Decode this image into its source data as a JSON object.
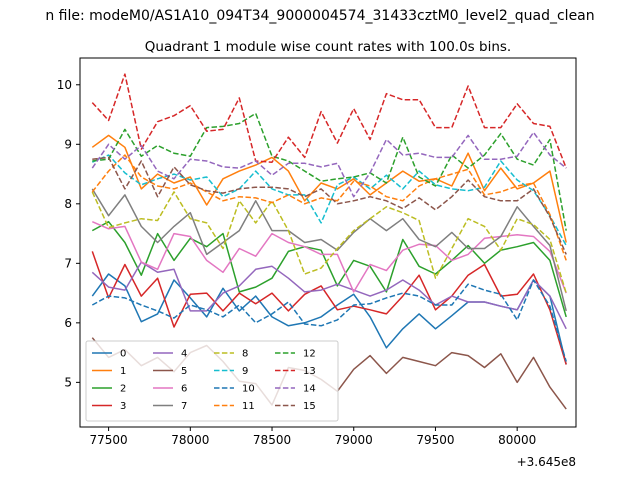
{
  "chart_data": {
    "type": "line",
    "suptitle": "n file: modeM0/AS1A10_094T34_9000004574_31433cztM0_level2_quad_clean",
    "title": "Quadrant 1 module wise count rates with 100.0s bins.",
    "xlabel": "",
    "ylabel": "",
    "offset_text": "+3.645e8",
    "xlim": [
      77325,
      80360
    ],
    "ylim": [
      4.25,
      10.45
    ],
    "x_ticks": [
      77500,
      78000,
      78500,
      79000,
      79500,
      80000
    ],
    "x_tick_labels": [
      "77500",
      "78000",
      "78500",
      "79000",
      "79500",
      "80000"
    ],
    "y_ticks": [
      5,
      6,
      7,
      8,
      9,
      10
    ],
    "y_tick_labels": [
      "5",
      "6",
      "7",
      "8",
      "9",
      "10"
    ],
    "x": [
      77400,
      77500,
      77600,
      77700,
      77800,
      77900,
      78000,
      78100,
      78200,
      78300,
      78400,
      78500,
      78600,
      78700,
      78800,
      78900,
      79000,
      79100,
      79200,
      79300,
      79400,
      79500,
      79600,
      79700,
      79800,
      79900,
      80000,
      80100,
      80200,
      80300
    ],
    "legend_position": "lower-left",
    "series": [
      {
        "name": "0",
        "color": "#1f77b4",
        "dash": "solid",
        "values": [
          6.45,
          6.82,
          6.62,
          6.02,
          6.15,
          6.72,
          6.42,
          6.1,
          6.58,
          6.2,
          6.45,
          6.1,
          5.95,
          6.0,
          6.1,
          6.3,
          6.48,
          6.1,
          5.58,
          5.9,
          6.15,
          5.9,
          6.12,
          6.35,
          6.35,
          6.28,
          6.22,
          6.72,
          6.45,
          5.3
        ]
      },
      {
        "name": "1",
        "color": "#ff7f0e",
        "dash": "solid",
        "values": [
          8.95,
          9.15,
          8.95,
          8.25,
          8.5,
          8.35,
          8.45,
          7.98,
          8.42,
          8.55,
          8.65,
          8.78,
          8.55,
          8.05,
          8.35,
          8.25,
          8.42,
          8.15,
          8.35,
          8.55,
          8.38,
          8.42,
          8.3,
          8.85,
          8.22,
          8.6,
          8.25,
          8.35,
          8.55,
          7.35
        ]
      },
      {
        "name": "2",
        "color": "#2ca02c",
        "dash": "solid",
        "values": [
          7.55,
          7.7,
          7.35,
          6.8,
          7.5,
          7.05,
          7.42,
          7.28,
          7.5,
          6.52,
          6.6,
          6.75,
          7.2,
          7.28,
          7.22,
          6.62,
          7.05,
          6.95,
          6.52,
          7.4,
          6.95,
          6.82,
          7.05,
          7.3,
          7.0,
          7.22,
          7.28,
          7.35,
          7.05,
          6.1
        ]
      },
      {
        "name": "3",
        "color": "#d62728",
        "dash": "solid",
        "values": [
          7.2,
          6.42,
          6.98,
          6.45,
          6.75,
          5.93,
          6.48,
          6.5,
          6.2,
          6.5,
          6.32,
          6.5,
          6.2,
          6.48,
          6.62,
          6.22,
          6.28,
          6.22,
          6.15,
          6.45,
          6.8,
          6.22,
          6.45,
          6.8,
          6.98,
          6.45,
          6.48,
          6.82,
          6.22,
          5.3
        ]
      },
      {
        "name": "4",
        "color": "#9467bd",
        "dash": "solid",
        "values": [
          6.85,
          6.6,
          6.55,
          7.02,
          6.85,
          6.9,
          6.2,
          6.2,
          6.5,
          6.62,
          6.9,
          6.95,
          6.75,
          6.52,
          6.55,
          6.65,
          6.55,
          6.45,
          6.55,
          6.72,
          6.55,
          6.3,
          6.45,
          6.35,
          6.35,
          6.28,
          6.22,
          6.72,
          6.45,
          5.9
        ]
      },
      {
        "name": "5",
        "color": "#8c564b",
        "dash": "solid",
        "values": [
          5.75,
          5.42,
          5.55,
          5.28,
          5.42,
          5.18,
          5.5,
          5.62,
          5.35,
          5.02,
          4.98,
          4.62,
          5.25,
          5.2,
          5.05,
          4.85,
          5.22,
          5.45,
          5.15,
          5.42,
          5.35,
          5.28,
          5.5,
          5.45,
          5.25,
          5.48,
          5.0,
          5.42,
          4.92,
          4.55
        ]
      },
      {
        "name": "6",
        "color": "#e377c2",
        "dash": "solid",
        "values": [
          7.7,
          7.58,
          7.62,
          7.02,
          6.9,
          7.5,
          7.45,
          7.05,
          6.85,
          7.25,
          7.12,
          7.5,
          7.35,
          7.28,
          7.15,
          7.15,
          6.52,
          6.98,
          6.88,
          7.22,
          7.32,
          7.3,
          7.05,
          7.15,
          7.42,
          7.45,
          7.48,
          7.45,
          7.2,
          6.5
        ]
      },
      {
        "name": "7",
        "color": "#7f7f7f",
        "dash": "solid",
        "values": [
          8.25,
          7.8,
          8.15,
          7.62,
          7.35,
          7.62,
          7.85,
          7.15,
          7.35,
          7.55,
          8.05,
          7.55,
          7.55,
          7.35,
          7.4,
          7.22,
          7.52,
          7.75,
          7.55,
          7.75,
          7.4,
          7.28,
          7.52,
          7.25,
          7.25,
          7.45,
          7.95,
          7.62,
          7.3,
          6.2
        ]
      },
      {
        "name": "8",
        "color": "#bcbd22",
        "dash": "dashed",
        "values": [
          8.2,
          7.6,
          7.68,
          7.75,
          7.72,
          8.2,
          7.75,
          7.68,
          7.25,
          8.05,
          7.68,
          8.05,
          7.55,
          6.82,
          6.92,
          7.25,
          7.55,
          7.75,
          7.95,
          7.85,
          7.72,
          6.75,
          7.25,
          7.75,
          7.62,
          7.22,
          7.75,
          7.65,
          7.4,
          6.5
        ]
      },
      {
        "name": "9",
        "color": "#17becf",
        "dash": "dashed",
        "values": [
          8.7,
          8.82,
          8.52,
          8.32,
          8.42,
          8.5,
          8.4,
          8.45,
          8.12,
          8.25,
          8.55,
          8.25,
          8.15,
          8.15,
          7.68,
          8.32,
          8.45,
          8.25,
          8.48,
          8.25,
          8.55,
          8.32,
          8.25,
          8.22,
          8.28,
          8.72,
          8.4,
          8.22,
          7.8,
          7.3
        ]
      },
      {
        "name": "10",
        "color": "#1f77b4",
        "dash": "dashed",
        "values": [
          6.3,
          6.45,
          6.42,
          6.3,
          6.2,
          6.08,
          6.3,
          6.22,
          6.1,
          6.3,
          6.0,
          6.15,
          6.35,
          5.98,
          5.95,
          6.05,
          6.3,
          6.32,
          6.42,
          6.5,
          6.45,
          6.3,
          6.3,
          6.65,
          6.55,
          6.48,
          6.05,
          6.72,
          6.28,
          5.35
        ]
      },
      {
        "name": "11",
        "color": "#ff7f0e",
        "dash": "dashed",
        "values": [
          8.2,
          8.55,
          8.82,
          8.45,
          8.3,
          8.25,
          8.35,
          8.2,
          8.05,
          8.12,
          8.1,
          8.02,
          8.15,
          8.0,
          8.1,
          8.05,
          8.38,
          8.3,
          8.12,
          8.05,
          8.3,
          8.42,
          8.5,
          8.58,
          8.15,
          8.2,
          8.3,
          8.35,
          7.82,
          7.05
        ]
      },
      {
        "name": "12",
        "color": "#2ca02c",
        "dash": "dashed",
        "values": [
          8.72,
          8.75,
          9.25,
          8.8,
          8.98,
          8.85,
          8.8,
          9.28,
          9.3,
          9.35,
          9.52,
          8.8,
          8.72,
          8.55,
          8.38,
          8.42,
          8.45,
          8.52,
          8.35,
          9.12,
          8.45,
          8.3,
          8.82,
          8.6,
          8.82,
          9.18,
          8.75,
          8.65,
          9.08,
          7.55
        ]
      },
      {
        "name": "13",
        "color": "#d62728",
        "dash": "dashed",
        "values": [
          9.7,
          9.4,
          10.18,
          8.92,
          9.38,
          9.48,
          9.65,
          9.22,
          9.25,
          9.78,
          8.72,
          8.7,
          9.12,
          8.78,
          9.55,
          9.02,
          9.6,
          9.08,
          9.85,
          9.75,
          9.75,
          9.28,
          9.28,
          9.98,
          9.28,
          9.28,
          9.68,
          9.35,
          9.3,
          8.6
        ]
      },
      {
        "name": "14",
        "color": "#9467bd",
        "dash": "dashed",
        "values": [
          8.6,
          9.0,
          8.75,
          8.98,
          8.55,
          8.42,
          8.75,
          8.72,
          8.62,
          8.6,
          8.72,
          8.48,
          8.68,
          8.68,
          8.62,
          8.68,
          8.12,
          8.52,
          9.08,
          8.82,
          8.85,
          8.78,
          8.78,
          9.15,
          8.75,
          8.75,
          8.8,
          9.2,
          8.82,
          8.6
        ]
      },
      {
        "name": "15",
        "color": "#8c564b",
        "dash": "dashed",
        "values": [
          8.75,
          8.78,
          8.25,
          8.72,
          8.12,
          8.62,
          8.32,
          8.22,
          8.18,
          8.25,
          8.28,
          8.28,
          8.25,
          8.12,
          8.25,
          8.0,
          8.05,
          8.12,
          8.05,
          7.92,
          8.1,
          7.9,
          8.12,
          8.4,
          8.12,
          8.05,
          8.05,
          8.25,
          7.78,
          7.15
        ]
      }
    ]
  }
}
